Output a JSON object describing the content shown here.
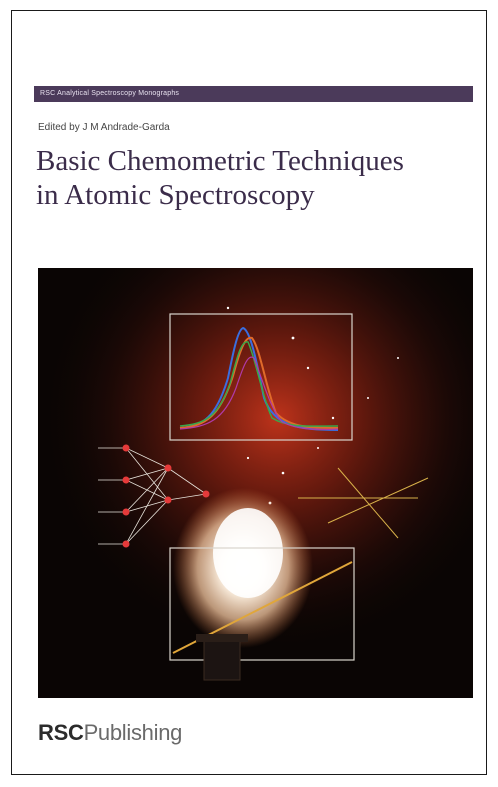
{
  "cover": {
    "series": "RSC Analytical Spectroscopy Monographs",
    "editor": "Edited by J M Andrade-Garda",
    "title_line1": "Basic Chemometric Techniques",
    "title_line2": "in Atomic Spectroscopy",
    "publisher_brand": "RSC",
    "publisher_word": "Publishing"
  },
  "colors": {
    "series_bar": "#4b3a5a",
    "title_text": "#3b2c4a",
    "artwork_background": "#0a0504",
    "flame_core": "#fff6e8",
    "glow": "#c7351c"
  }
}
